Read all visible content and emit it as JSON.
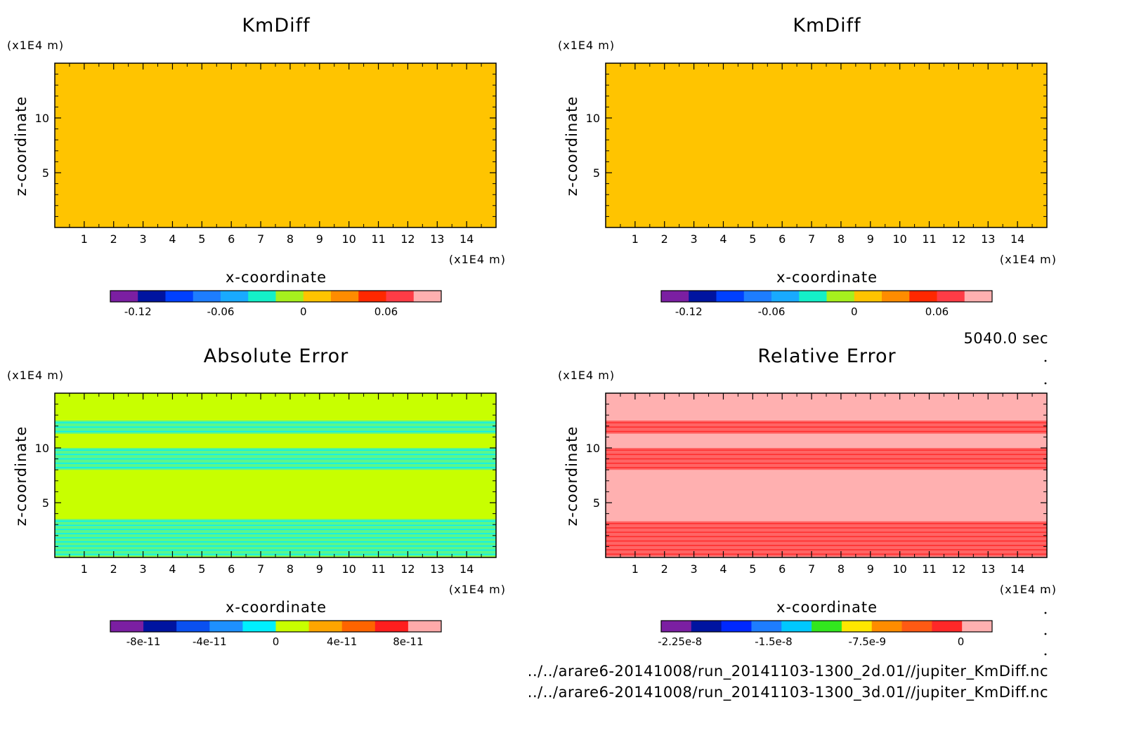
{
  "time_label": "5040.0 sec",
  "file_paths": [
    "../../arare6-20141008/run_20141103-1300_2d.01//jupiter_KmDiff.nc",
    "../../arare6-20141008/run_20141103-1300_3d.01//jupiter_KmDiff.nc"
  ],
  "chart_data": [
    {
      "type": "heatmap",
      "title": "KmDiff",
      "xlabel": "x-coordinate",
      "ylabel": "z-coordinate",
      "x_unit": "(x1E4 m)",
      "y_unit": "(x1E4 m)",
      "xlim": [
        0,
        15
      ],
      "ylim": [
        0,
        15
      ],
      "x_ticks": [
        1,
        2,
        3,
        4,
        5,
        6,
        7,
        8,
        9,
        10,
        11,
        12,
        13,
        14
      ],
      "y_ticks": [
        5,
        10
      ],
      "background_level": 0.01,
      "bands": [
        {
          "z": [
            0,
            1
          ],
          "level": 0.0
        },
        {
          "z": [
            1,
            3
          ],
          "level": 0.0
        },
        {
          "z": [
            7.6,
            10.4
          ],
          "level": 0.0
        },
        {
          "z": [
            11,
            13
          ],
          "level": 0.0
        }
      ],
      "colorbar": {
        "levels": [
          -0.14,
          -0.12,
          -0.1,
          -0.08,
          -0.06,
          -0.04,
          -0.02,
          0,
          0.02,
          0.04,
          0.06,
          0.08,
          0.1
        ],
        "colors": [
          "#7b1fa2",
          "#0014a0",
          "#0040ff",
          "#1e7dff",
          "#19aaff",
          "#14f0c8",
          "#a6f01e",
          "#ffc400",
          "#ff8c00",
          "#ff2800",
          "#ff3c46",
          "#ffb0b0"
        ],
        "tick_labels": [
          "-0.12",
          "-0.06",
          "0",
          "0.06"
        ],
        "tick_values": [
          -0.12,
          -0.06,
          0,
          0.06
        ]
      }
    },
    {
      "type": "heatmap",
      "title": "KmDiff",
      "xlabel": "x-coordinate",
      "ylabel": "z-coordinate",
      "x_unit": "(x1E4 m)",
      "y_unit": "(x1E4 m)",
      "xlim": [
        0,
        15
      ],
      "ylim": [
        0,
        15
      ],
      "x_ticks": [
        1,
        2,
        3,
        4,
        5,
        6,
        7,
        8,
        9,
        10,
        11,
        12,
        13,
        14
      ],
      "y_ticks": [
        5,
        10
      ],
      "background_level": 0.01,
      "bands": [
        {
          "z": [
            0,
            1
          ],
          "level": 0.0
        },
        {
          "z": [
            1,
            3
          ],
          "level": 0.0
        },
        {
          "z": [
            7.6,
            10.4
          ],
          "level": 0.0
        },
        {
          "z": [
            11,
            13
          ],
          "level": 0.0
        }
      ],
      "colorbar": {
        "levels": [
          -0.14,
          -0.12,
          -0.1,
          -0.08,
          -0.06,
          -0.04,
          -0.02,
          0,
          0.02,
          0.04,
          0.06,
          0.08,
          0.1
        ],
        "colors": [
          "#7b1fa2",
          "#0014a0",
          "#0040ff",
          "#1e7dff",
          "#19aaff",
          "#14f0c8",
          "#a6f01e",
          "#ffc400",
          "#ff8c00",
          "#ff2800",
          "#ff3c46",
          "#ffb0b0"
        ],
        "tick_labels": [
          "-0.12",
          "-0.06",
          "0",
          "0.06"
        ],
        "tick_values": [
          -0.12,
          -0.06,
          0,
          0.06
        ]
      }
    },
    {
      "type": "heatmap",
      "title": "Absolute Error",
      "xlabel": "x-coordinate",
      "ylabel": "z-coordinate",
      "x_unit": "(x1E4 m)",
      "y_unit": "(x1E4 m)",
      "xlim": [
        0,
        15
      ],
      "ylim": [
        0,
        15
      ],
      "x_ticks": [
        1,
        2,
        3,
        4,
        5,
        6,
        7,
        8,
        9,
        10,
        11,
        12,
        13,
        14
      ],
      "y_ticks": [
        5,
        10
      ],
      "background_level": 1e-11,
      "bands": [
        {
          "z": [
            0.1,
            3.5
          ],
          "level": -1e-11
        },
        {
          "z": [
            8.0,
            10.0
          ],
          "level": -1e-11
        },
        {
          "z": [
            11.3,
            12.5
          ],
          "level": -1e-11
        }
      ],
      "colorbar": {
        "levels": [
          -1e-10,
          -8e-11,
          -6e-11,
          -4e-11,
          -2e-11,
          0,
          2e-11,
          4e-11,
          6e-11,
          8e-11,
          1e-10
        ],
        "colors": [
          "#7b1fa2",
          "#0014a0",
          "#0a50f0",
          "#1e90ff",
          "#00f0ff",
          "#c8ff00",
          "#ffa500",
          "#ff6400",
          "#ff1e1e",
          "#ffaaaa"
        ],
        "tick_labels": [
          "-8e-11",
          "-4e-11",
          "0",
          "4e-11",
          "8e-11"
        ],
        "tick_values": [
          -8e-11,
          -4e-11,
          0,
          4e-11,
          8e-11
        ]
      }
    },
    {
      "type": "heatmap",
      "title": "Relative Error",
      "xlabel": "x-coordinate",
      "ylabel": "z-coordinate",
      "x_unit": "(x1E4 m)",
      "y_unit": "(x1E4 m)",
      "xlim": [
        0,
        15
      ],
      "ylim": [
        0,
        15
      ],
      "x_ticks": [
        1,
        2,
        3,
        4,
        5,
        6,
        7,
        8,
        9,
        10,
        11,
        12,
        13,
        14
      ],
      "y_ticks": [
        5,
        10
      ],
      "background_level": 0,
      "bands": [
        {
          "z": [
            0.1,
            3.3
          ],
          "level": -1e-09
        },
        {
          "z": [
            8.0,
            10.0
          ],
          "level": -1e-09
        },
        {
          "z": [
            11.3,
            12.5
          ],
          "level": -1e-09
        }
      ],
      "colorbar": {
        "levels": [
          -2.4e-08,
          -2.25e-08,
          -2e-08,
          -1.75e-08,
          -1.5e-08,
          -1.25e-08,
          -1e-08,
          -7.5e-09,
          -5e-09,
          -2.5e-09,
          0,
          2.5e-09
        ],
        "colors": [
          "#7b1fa2",
          "#0014a0",
          "#0028ff",
          "#1e7dff",
          "#00c8ff",
          "#32e61e",
          "#ffe600",
          "#ff8c00",
          "#ff5a14",
          "#ff2828",
          "#ffb0b0"
        ],
        "tick_labels": [
          "-2.25e-8",
          "-1.5e-8",
          "-7.5e-9",
          "0"
        ],
        "tick_values": [
          -2.25e-08,
          -1.5e-08,
          -7.5e-09,
          0
        ]
      }
    }
  ]
}
